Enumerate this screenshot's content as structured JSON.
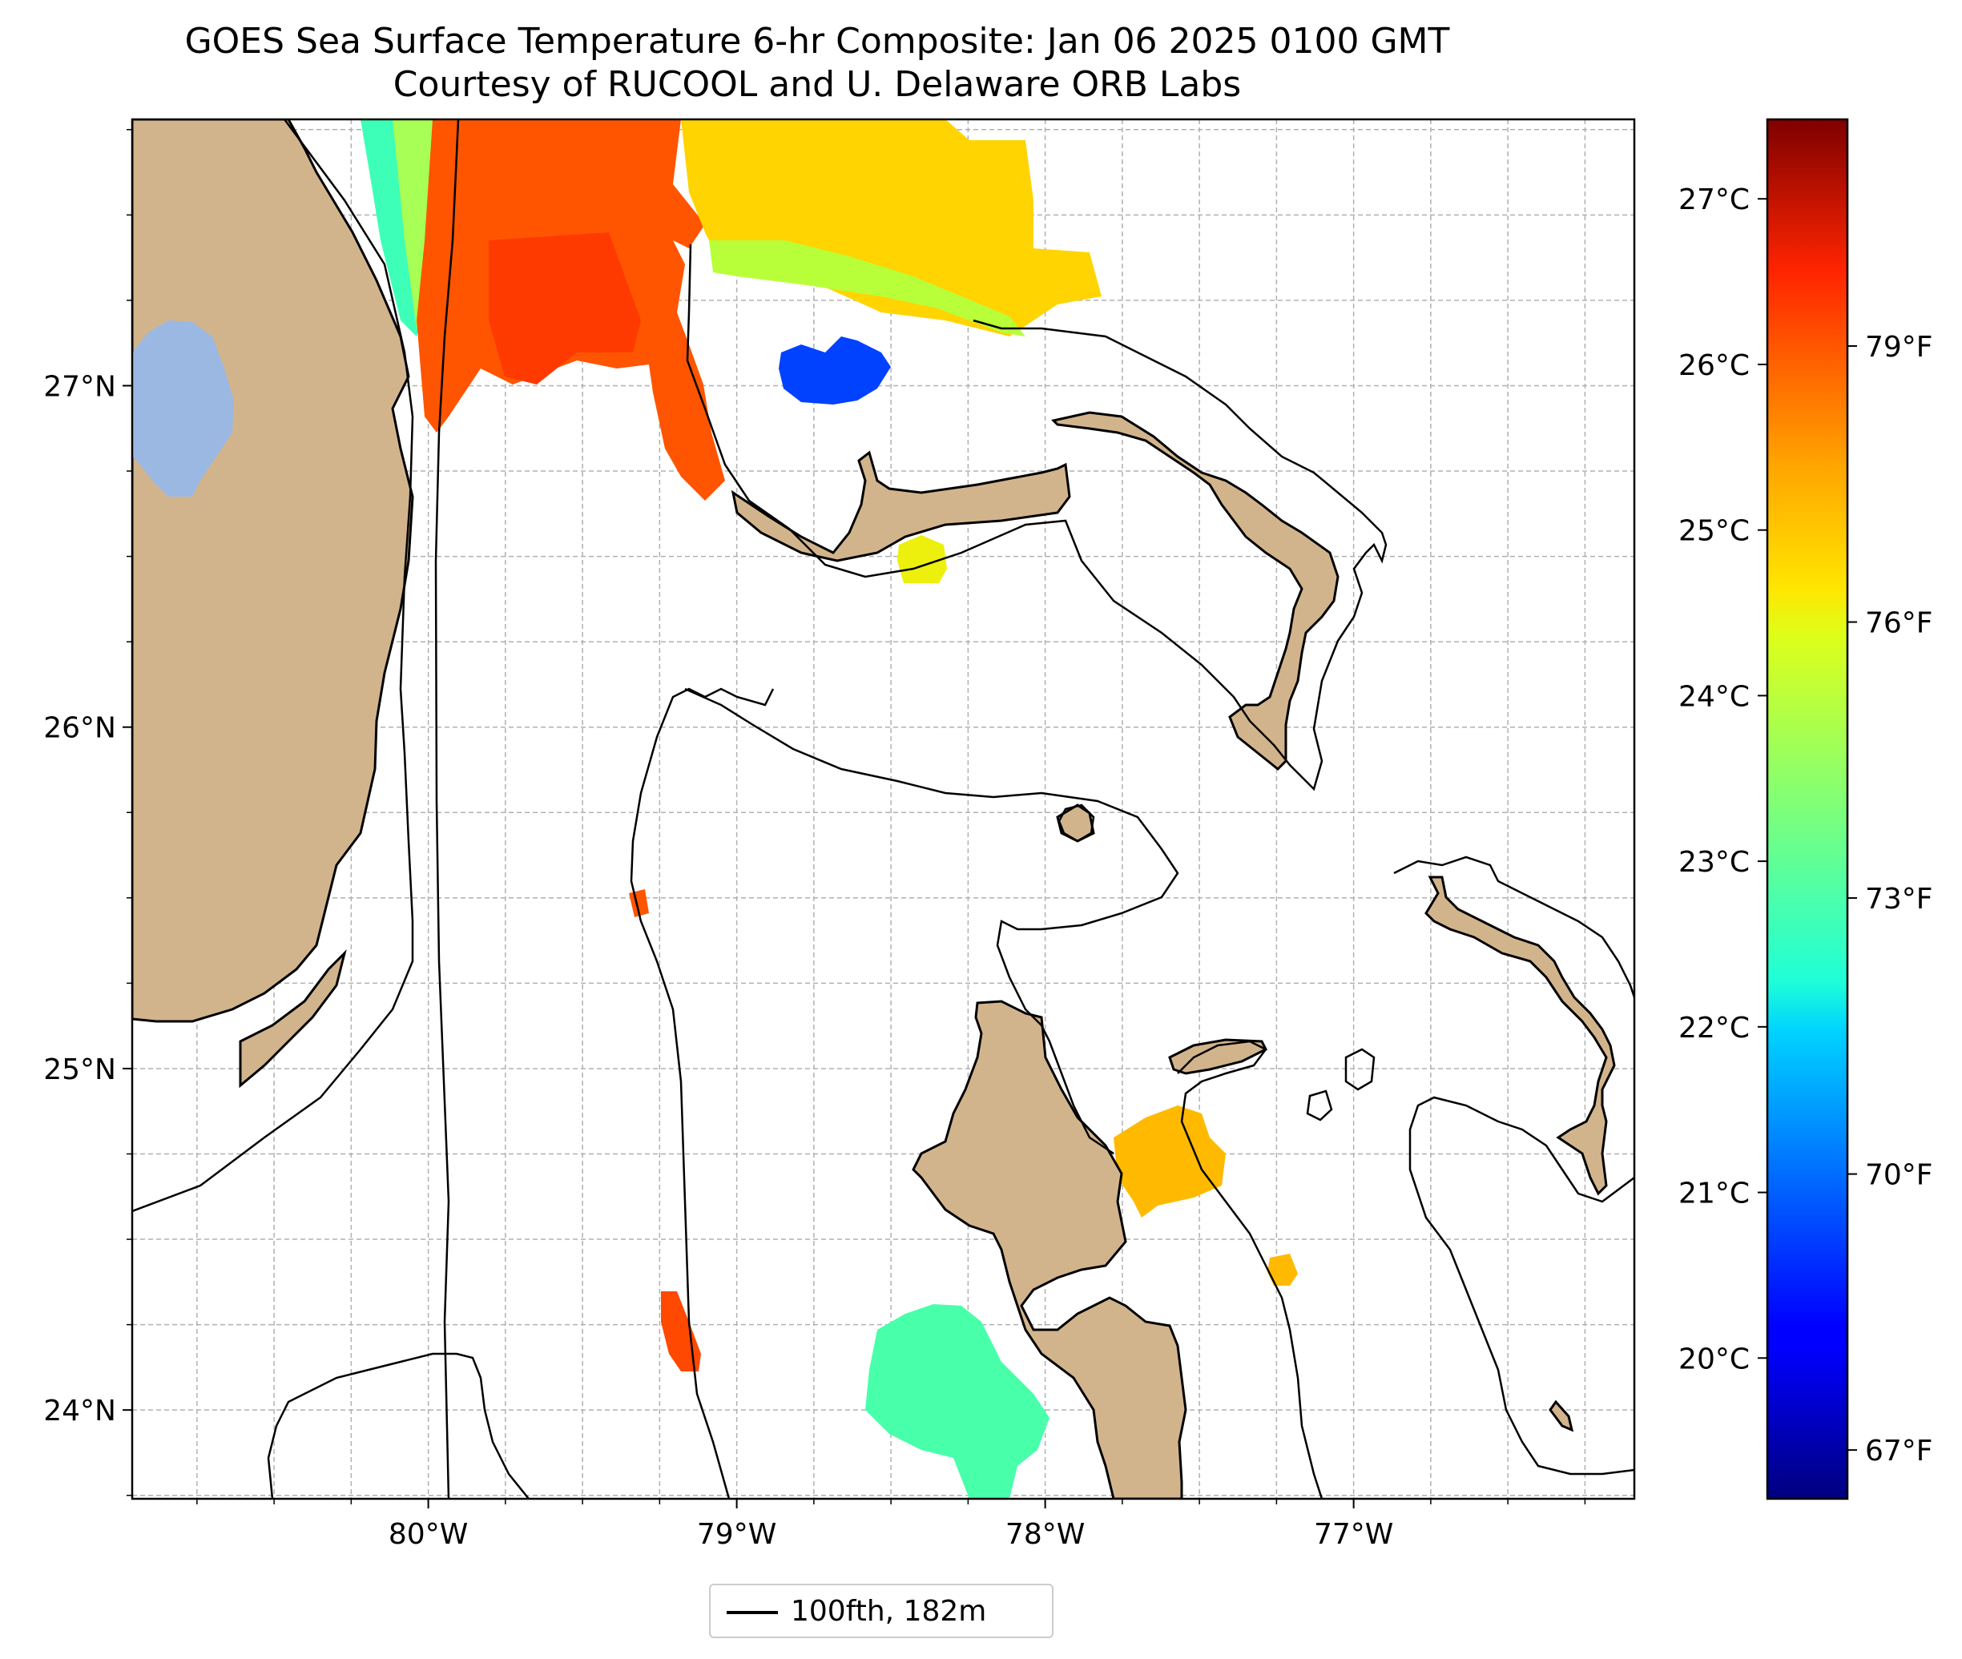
{
  "figure": {
    "title_line1": "GOES Sea Surface Temperature 6-hr Composite: Jan 06 2025 0100 GMT",
    "title_line2": "Courtesy of RUCOOL and U. Delaware ORB Labs",
    "colormap": "jet",
    "colors": {
      "land": "#d2b48c",
      "lake": "#9bb8e3",
      "ocean": "#ffffff",
      "grid": "#b0b0b0"
    }
  },
  "map": {
    "lon_range": [
      -80.96,
      -76.09
    ],
    "lat_range": [
      23.74,
      27.78
    ],
    "grid": "dashed",
    "lon_ticks": [
      {
        "value": -80,
        "label": "80°W"
      },
      {
        "value": -79,
        "label": "79°W"
      },
      {
        "value": -78,
        "label": "78°W"
      },
      {
        "value": -77,
        "label": "77°W"
      }
    ],
    "lat_ticks": [
      {
        "value": 27,
        "label": "27°N"
      },
      {
        "value": 26,
        "label": "26°N"
      },
      {
        "value": 25,
        "label": "25°N"
      },
      {
        "value": 24,
        "label": "24°N"
      }
    ],
    "legend_label": "100fth, 182m"
  },
  "colorbar": {
    "range_c": [
      19.15,
      27.48
    ],
    "celsius_ticks": [
      {
        "value": 27,
        "label": "27°C"
      },
      {
        "value": 26,
        "label": "26°C"
      },
      {
        "value": 25,
        "label": "25°C"
      },
      {
        "value": 24,
        "label": "24°C"
      },
      {
        "value": 23,
        "label": "23°C"
      },
      {
        "value": 22,
        "label": "22°C"
      },
      {
        "value": 21,
        "label": "21°C"
      },
      {
        "value": 20,
        "label": "20°C"
      }
    ],
    "fahrenheit_ticks": [
      {
        "value": 79,
        "label": "79°F"
      },
      {
        "value": 76,
        "label": "76°F"
      },
      {
        "value": 73,
        "label": "73°F"
      },
      {
        "value": 70,
        "label": "70°F"
      },
      {
        "value": 67,
        "label": "67°F"
      }
    ]
  }
}
